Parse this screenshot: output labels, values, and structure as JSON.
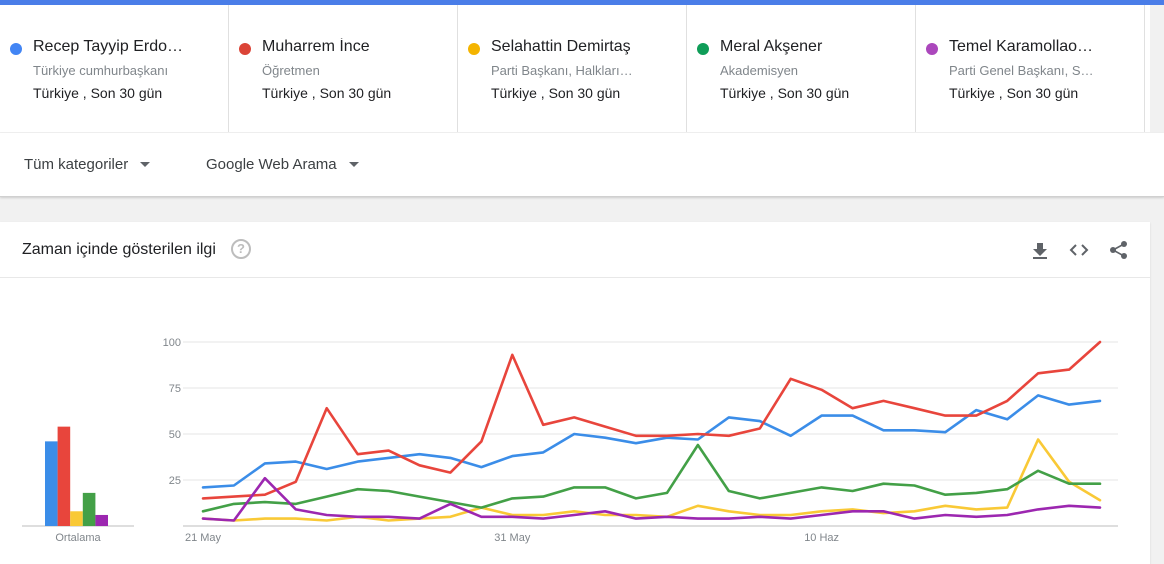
{
  "terms": [
    {
      "name": "Recep Tayyip Erdo…",
      "subtitle": "Türkiye cumhurbaşkanı",
      "location": "Türkiye , Son 30 gün",
      "color": "#4285f4"
    },
    {
      "name": "Muharrem İnce",
      "subtitle": "Öğretmen",
      "location": "Türkiye , Son 30 gün",
      "color": "#db4437"
    },
    {
      "name": "Selahattin Demirtaş",
      "subtitle": "Parti Başkanı, Halkları…",
      "location": "Türkiye , Son 30 gün",
      "color": "#f4b400"
    },
    {
      "name": "Meral Akşener",
      "subtitle": "Akademisyen",
      "location": "Türkiye , Son 30 gün",
      "color": "#0f9d58"
    },
    {
      "name": "Temel Karamollao…",
      "subtitle": "Parti Genel Başkanı, S…",
      "location": "Türkiye , Son 30 gün",
      "color": "#ab47bc"
    }
  ],
  "filters": {
    "category": "Tüm kategoriler",
    "search_type": "Google Web Arama"
  },
  "card": {
    "title": "Zaman içinde gösterilen ilgi",
    "help_glyph": "?",
    "icons": [
      "download-icon",
      "embed-icon",
      "share-icon"
    ]
  },
  "chart_data": {
    "type": "line",
    "ylim": [
      0,
      100
    ],
    "y_ticks": [
      "25",
      "50",
      "75",
      "100"
    ],
    "x_tick_labels": [
      {
        "index": 0,
        "label": "21 May"
      },
      {
        "index": 10,
        "label": "31 May"
      },
      {
        "index": 20,
        "label": "10 Haz"
      }
    ],
    "average_label": "Ortalama",
    "series": [
      {
        "name": "Recep Tayyip Erdo…",
        "color": "#3b8de8",
        "average": 46,
        "values": [
          21,
          22,
          34,
          35,
          31,
          35,
          37,
          39,
          37,
          32,
          38,
          40,
          50,
          48,
          45,
          48,
          47,
          59,
          57,
          49,
          60,
          60,
          52,
          52,
          51,
          63,
          58,
          71,
          66,
          68
        ]
      },
      {
        "name": "Muharrem İnce",
        "color": "#e8453c",
        "average": 54,
        "values": [
          15,
          16,
          17,
          24,
          64,
          39,
          41,
          33,
          29,
          46,
          93,
          55,
          59,
          54,
          49,
          49,
          50,
          49,
          53,
          80,
          74,
          64,
          68,
          64,
          60,
          60,
          68,
          83,
          85,
          100
        ]
      },
      {
        "name": "Selahattin Demirtaş",
        "color": "#f9c936",
        "average": 8,
        "values": [
          4,
          3,
          4,
          4,
          3,
          5,
          3,
          4,
          5,
          10,
          6,
          6,
          8,
          6,
          6,
          5,
          11,
          8,
          6,
          6,
          8,
          9,
          7,
          8,
          11,
          9,
          10,
          47,
          24,
          14
        ]
      },
      {
        "name": "Meral Akşener",
        "color": "#43a047",
        "average": 18,
        "values": [
          8,
          12,
          13,
          12,
          16,
          20,
          19,
          16,
          13,
          10,
          15,
          16,
          21,
          21,
          15,
          18,
          44,
          19,
          15,
          18,
          21,
          19,
          23,
          22,
          17,
          18,
          20,
          30,
          23,
          23
        ]
      },
      {
        "name": "Temel Karamollao…",
        "color": "#9c27b0",
        "average": 6,
        "values": [
          4,
          3,
          26,
          9,
          6,
          5,
          5,
          4,
          12,
          5,
          5,
          4,
          6,
          8,
          4,
          5,
          4,
          4,
          5,
          4,
          6,
          8,
          8,
          4,
          6,
          5,
          6,
          9,
          11,
          10
        ]
      }
    ]
  }
}
